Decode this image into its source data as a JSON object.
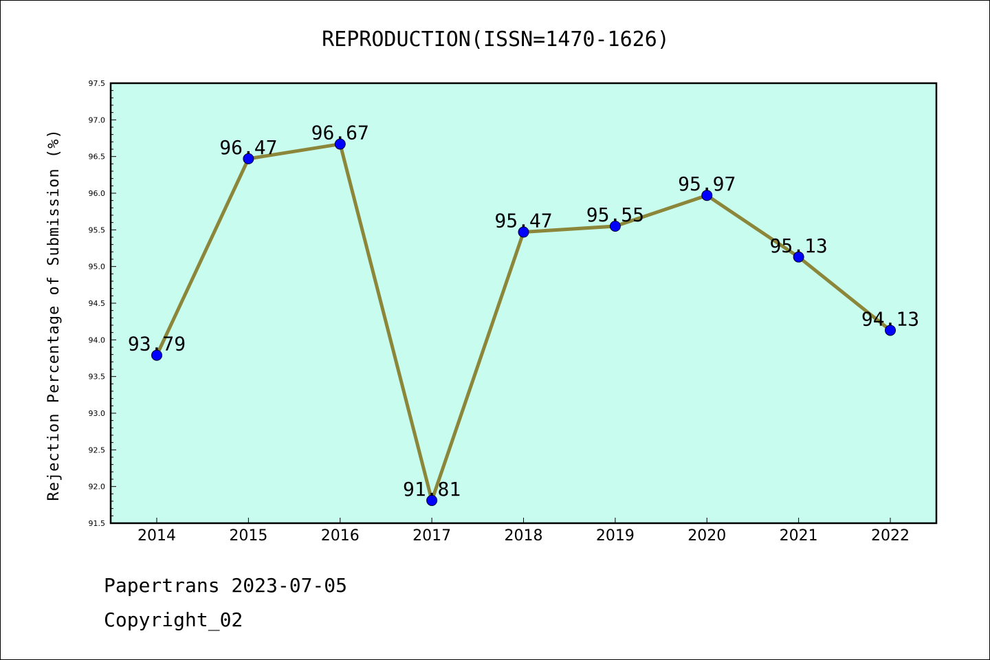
{
  "chart_data": {
    "type": "line",
    "title": "REPRODUCTION(ISSN=1470-1626)",
    "xlabel": "",
    "ylabel": "Rejection Percentage of Submission (%)",
    "categories": [
      "2014",
      "2015",
      "2016",
      "2017",
      "2018",
      "2019",
      "2020",
      "2021",
      "2022"
    ],
    "series": [
      {
        "values": [
          93.79,
          96.47,
          96.67,
          91.81,
          95.47,
          95.55,
          95.97,
          95.13,
          94.13
        ],
        "data_labels": [
          "93.79",
          "96.47",
          "96.67",
          "91.81",
          "95.47",
          "95.55",
          "95.97",
          "95.13",
          "94.13"
        ]
      }
    ],
    "ylim": [
      91.5,
      97.5
    ],
    "yticks": [
      "91.5",
      "92.0",
      "92.5",
      "93.0",
      "93.5",
      "94.0",
      "94.5",
      "95.0",
      "95.5",
      "96.0",
      "96.5",
      "97.0",
      "97.5"
    ],
    "grid": false,
    "legend": "none",
    "colors": {
      "plot_background": "#c8fcee",
      "line": "#8b8639",
      "marker": "#0000ff"
    }
  },
  "footer": {
    "source": "Papertrans 2023-07-05",
    "copyright": "Copyright_02"
  }
}
